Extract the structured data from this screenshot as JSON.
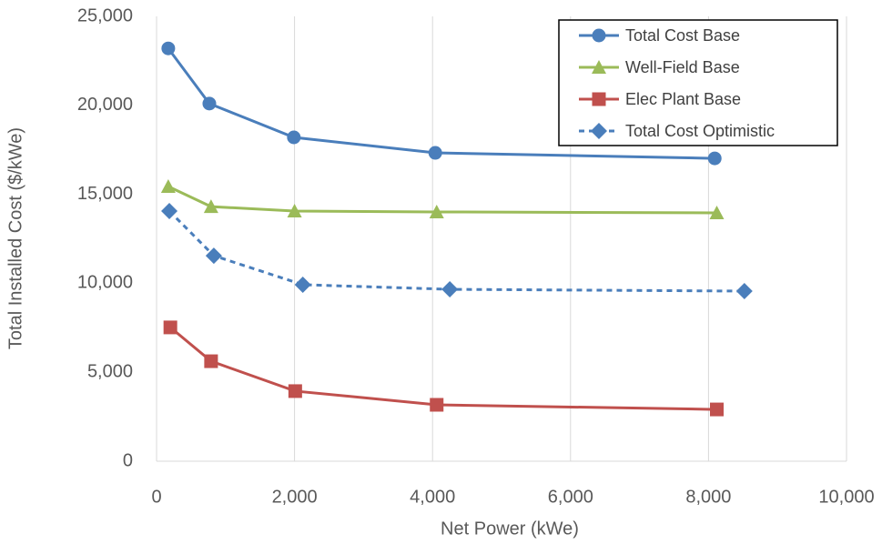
{
  "chart_data": {
    "type": "line",
    "x_label": "Net Power (kWe)",
    "y_label": "Total Installed Cost ($/kWe)",
    "xlim": [
      0,
      10000
    ],
    "xticks": [
      0,
      {
        "value": 2000,
        "label": "2,000"
      },
      {
        "value": 4000,
        "label": "4,000"
      },
      {
        "value": 6000,
        "label": "6,000"
      },
      {
        "value": 8000,
        "label": "8,000"
      },
      {
        "value": 10000,
        "label": "10,000"
      }
    ],
    "ylim": [
      0,
      25000
    ],
    "yticks": [
      0,
      {
        "value": 5000,
        "label": "5,000"
      },
      {
        "value": 10000,
        "label": "10,000"
      },
      {
        "value": 15000,
        "label": "15,000"
      },
      {
        "value": 20000,
        "label": "20,000"
      },
      {
        "value": 25000,
        "label": "25,000"
      }
    ],
    "grid": "x",
    "legend": "top-right",
    "series": [
      {
        "name": "Total Cost Base",
        "color": "#4a7ebb",
        "marker": "circle",
        "line_style": "solid",
        "x": [
          170,
          765,
          1990,
          4040,
          8090
        ],
        "values": [
          23200,
          20100,
          18200,
          17330,
          17020
        ]
      },
      {
        "name": "Well-Field Base",
        "color": "#9bbb59",
        "marker": "triangle",
        "line_style": "solid",
        "x": [
          170,
          790,
          2000,
          4060,
          8120
        ],
        "values": [
          15440,
          14310,
          14060,
          14010,
          13960
        ]
      },
      {
        "name": "Elec Plant Base",
        "color": "#c0504d",
        "marker": "square",
        "line_style": "solid",
        "x": [
          200,
          790,
          2010,
          4060,
          8120
        ],
        "values": [
          7520,
          5620,
          3940,
          3170,
          2910
        ]
      },
      {
        "name": "Total Cost Optimistic",
        "color": "#4a7ebb",
        "marker": "diamond",
        "line_style": "dashed",
        "x": [
          185,
          830,
          2120,
          4250,
          8520
        ],
        "values": [
          14060,
          11550,
          9920,
          9660,
          9560
        ]
      }
    ]
  }
}
